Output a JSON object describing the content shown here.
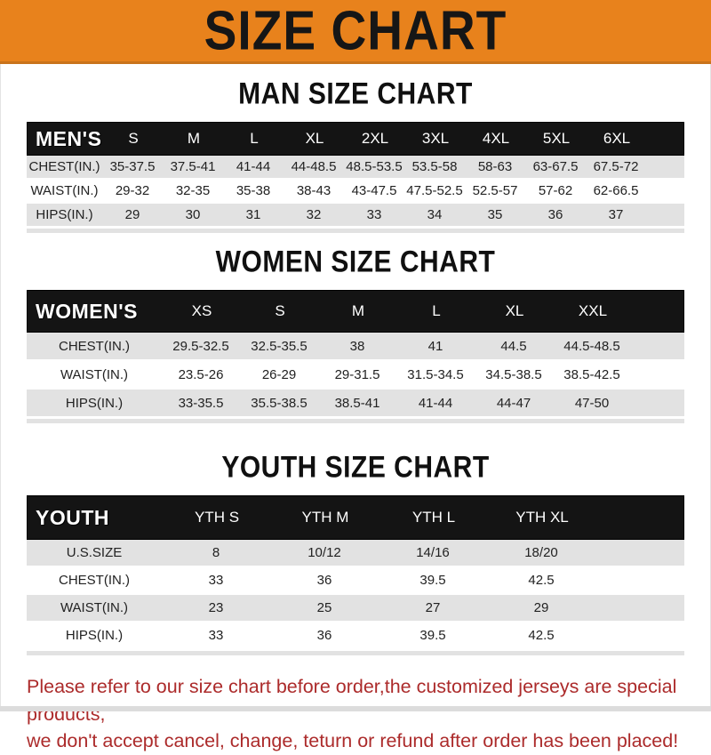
{
  "colors": {
    "banner_bg": "#E8821C",
    "banner_text": "#161616",
    "header_bar_bg": "#141414",
    "header_bar_text": "#FFFFFF",
    "row_alt_bg": "#E2E2E2",
    "footer_text": "#AC2B2B"
  },
  "banner": {
    "title": "SIZE CHART"
  },
  "man": {
    "heading": "MAN SIZE CHART",
    "table": {
      "header": [
        "MEN'S",
        "S",
        "M",
        "L",
        "XL",
        "2XL",
        "3XL",
        "4XL",
        "5XL",
        "6XL"
      ],
      "rows": [
        [
          "CHEST(IN.)",
          "35-37.5",
          "37.5-41",
          "41-44",
          "44-48.5",
          "48.5-53.5",
          "53.5-58",
          "58-63",
          "63-67.5",
          "67.5-72"
        ],
        [
          "WAIST(IN.)",
          "29-32",
          "32-35",
          "35-38",
          "38-43",
          "43-47.5",
          "47.5-52.5",
          "52.5-57",
          "57-62",
          "62-66.5"
        ],
        [
          "HIPS(IN.)",
          "29",
          "30",
          "31",
          "32",
          "33",
          "34",
          "35",
          "36",
          "37"
        ]
      ]
    }
  },
  "women": {
    "heading": "WOMEN SIZE CHART",
    "table": {
      "header": [
        "WOMEN'S",
        "XS",
        "S",
        "M",
        "L",
        "XL",
        "XXL"
      ],
      "rows": [
        [
          "CHEST(IN.)",
          "29.5-32.5",
          "32.5-35.5",
          "38",
          "41",
          "44.5",
          "44.5-48.5"
        ],
        [
          "WAIST(IN.)",
          "23.5-26",
          "26-29",
          "29-31.5",
          "31.5-34.5",
          "34.5-38.5",
          "38.5-42.5"
        ],
        [
          "HIPS(IN.)",
          "33-35.5",
          "35.5-38.5",
          "38.5-41",
          "41-44",
          "44-47",
          "47-50"
        ]
      ]
    }
  },
  "youth": {
    "heading": "YOUTH SIZE CHART",
    "table": {
      "header": [
        "YOUTH",
        "YTH S",
        "YTH M",
        "YTH L",
        "YTH XL"
      ],
      "rows": [
        [
          "U.S.SIZE",
          "8",
          "10/12",
          "14/16",
          "18/20"
        ],
        [
          "CHEST(IN.)",
          "33",
          "36",
          "39.5",
          "42.5"
        ],
        [
          "WAIST(IN.)",
          "23",
          "25",
          "27",
          "29"
        ],
        [
          "HIPS(IN.)",
          "33",
          "36",
          "39.5",
          "42.5"
        ]
      ]
    }
  },
  "footer": {
    "line1": "Please refer to our size chart before order,the customized jerseys are special products,",
    "line2": "we don't accept cancel, change, teturn or refund after order has been placed!"
  }
}
